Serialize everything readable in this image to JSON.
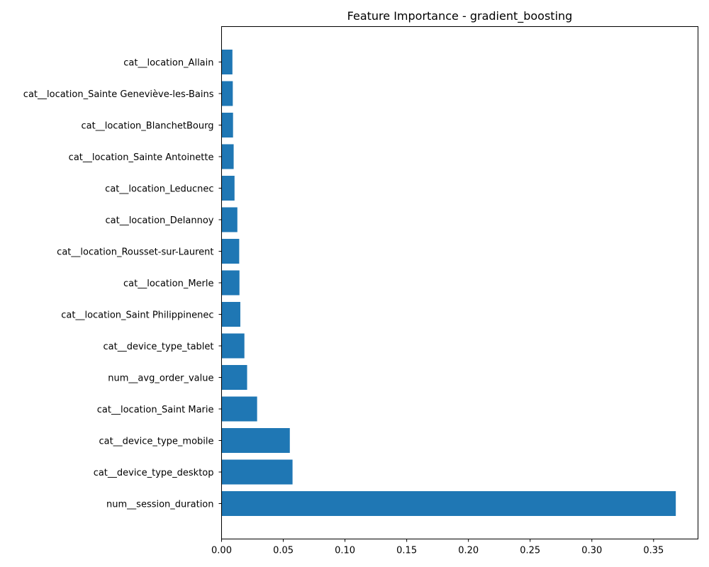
{
  "chart_data": {
    "type": "bar",
    "orientation": "horizontal",
    "title": "Feature Importance - gradient_boosting",
    "xlabel": "",
    "ylabel": "",
    "xlim": [
      0,
      0.386
    ],
    "x_ticks": [
      "0.00",
      "0.05",
      "0.10",
      "0.15",
      "0.20",
      "0.25",
      "0.30",
      "0.35"
    ],
    "grid": false,
    "bar_color": "#1f77b4",
    "categories": [
      "num__session_duration",
      "cat__device_type_desktop",
      "cat__device_type_mobile",
      "cat__location_Saint Marie",
      "num__avg_order_value",
      "cat__device_type_tablet",
      "cat__location_Saint Philippinenec",
      "cat__location_Merle",
      "cat__location_Rousset-sur-Laurent",
      "cat__location_Delannoy",
      "cat__location_Leducnec",
      "cat__location_Sainte Antoinette",
      "cat__location_BlanchetBourg",
      "cat__location_Sainte Geneviève-les-Bains",
      "cat__location_Allain"
    ],
    "values": [
      0.368,
      0.0575,
      0.0553,
      0.0288,
      0.0207,
      0.0185,
      0.0152,
      0.0145,
      0.0143,
      0.0128,
      0.0105,
      0.0098,
      0.0093,
      0.0091,
      0.0088
    ]
  }
}
